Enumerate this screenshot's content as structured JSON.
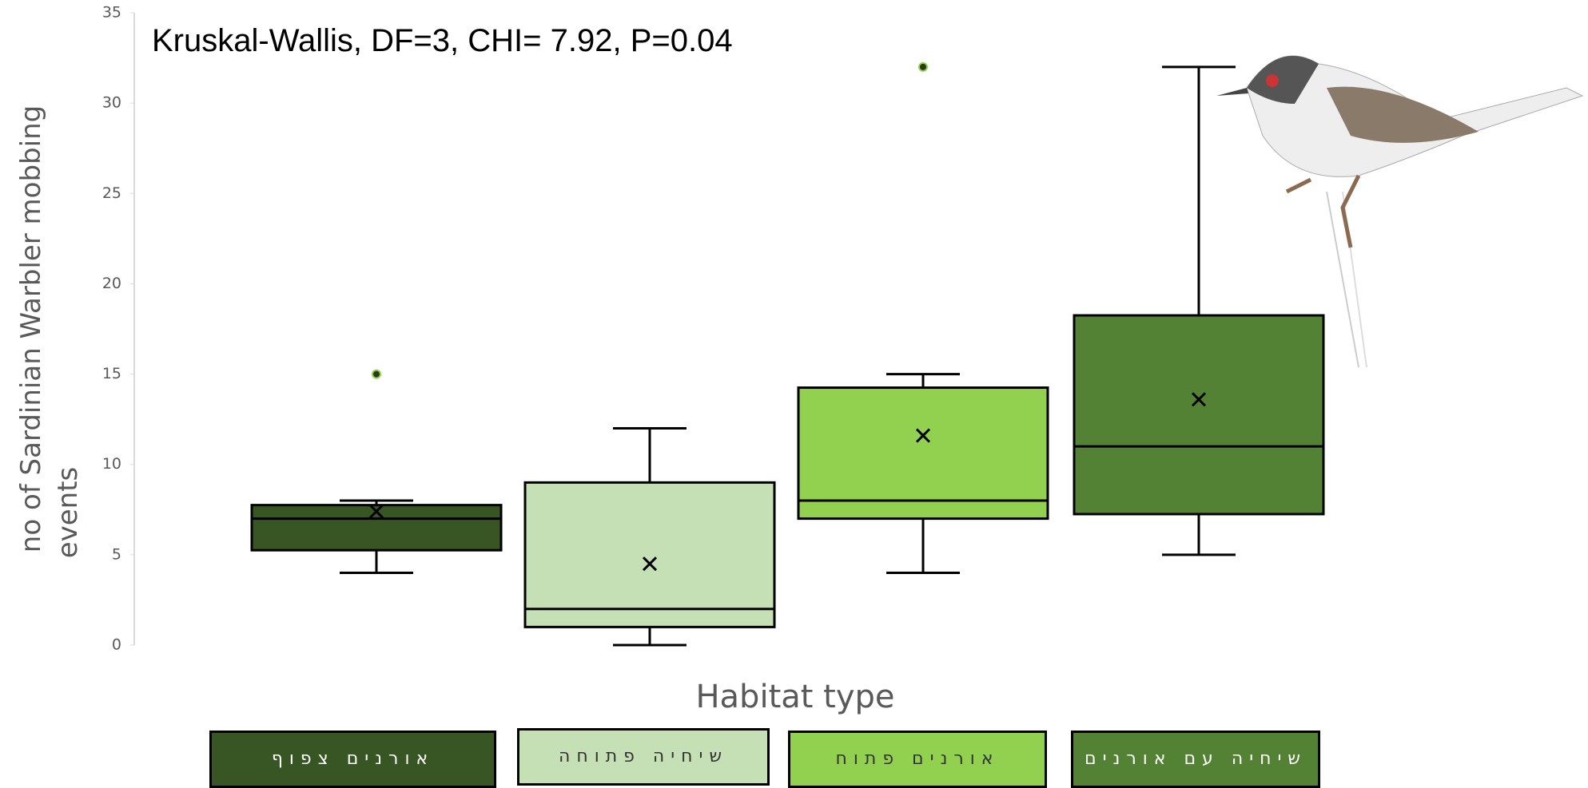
{
  "chart_data": {
    "type": "box",
    "annotation": "Kruskal-Wallis, DF=3, CHI= 7.92, P=0.04",
    "x_label": "Habitat type",
    "y_label": [
      "no of Sardinian Warbler mobbing",
      "events"
    ],
    "categories": [
      "אורנים צפוף",
      "שיחיה פתוחה",
      "אורנים פתוח",
      "שיחיה עם אורנים"
    ],
    "colors": [
      "#375623",
      "#c5e0b4",
      "#92d050",
      "#548235"
    ],
    "label_text_colors": [
      "#ffffff",
      "#333333",
      "#333333",
      "#ffffff"
    ],
    "boxes": [
      {
        "low": 4,
        "q1": 5.25,
        "median": 7,
        "q3": 7.75,
        "high": 8,
        "mean": 7.4,
        "outliers": [
          15
        ]
      },
      {
        "low": 0,
        "q1": 1,
        "median": 2,
        "q3": 9,
        "high": 12,
        "mean": 4.5,
        "outliers": []
      },
      {
        "low": 4,
        "q1": 7,
        "median": 8,
        "q3": 14.25,
        "high": 15,
        "mean": 11.6,
        "outliers": [
          32
        ]
      },
      {
        "low": 5,
        "q1": 7.25,
        "median": 11,
        "q3": 18.25,
        "high": 32,
        "mean": 13.6,
        "outliers": []
      }
    ],
    "ylim": [
      0,
      35
    ],
    "yticks": [
      0,
      5,
      10,
      15,
      20,
      25,
      30,
      35
    ]
  }
}
